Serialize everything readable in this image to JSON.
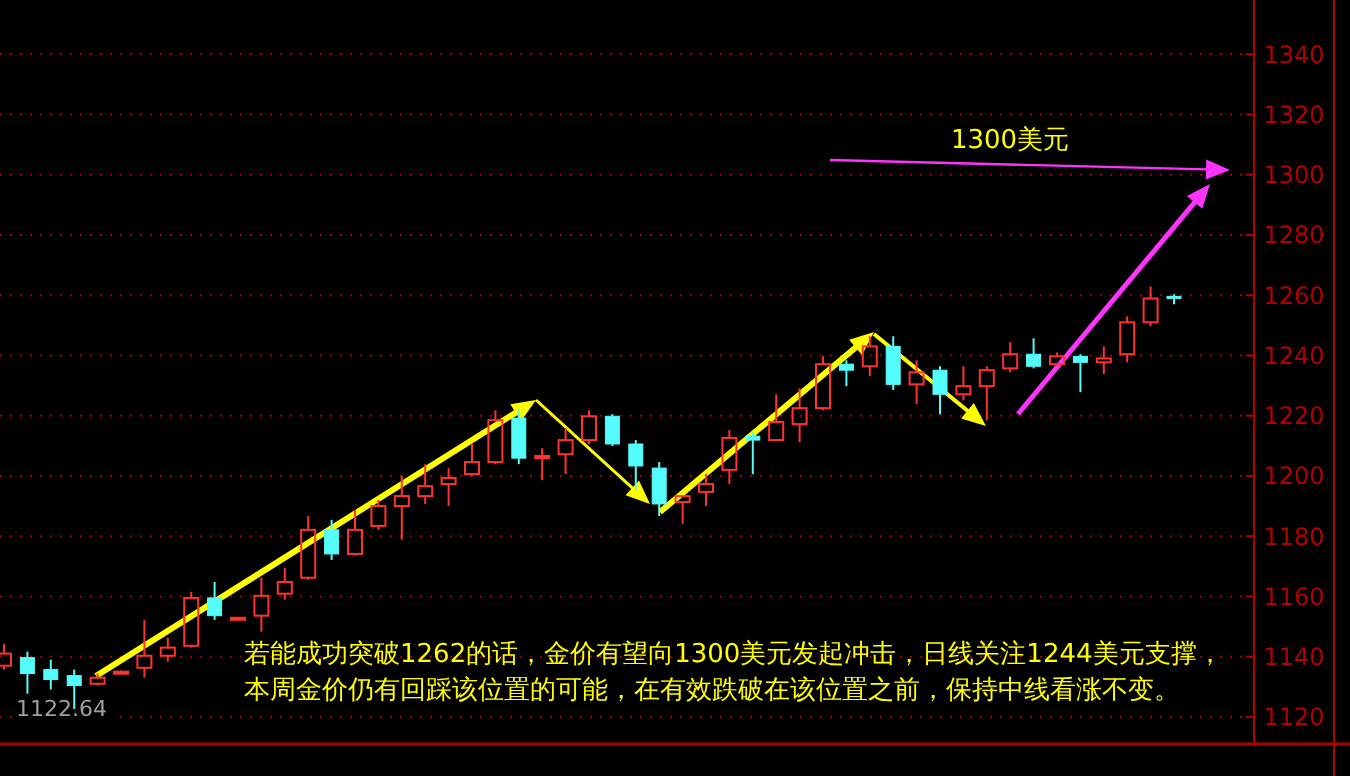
{
  "chart_data": {
    "type": "candlestick",
    "categories": [
      null,
      null,
      null,
      null,
      null,
      null,
      null,
      null,
      null,
      null,
      null,
      null,
      null,
      null,
      null,
      null,
      null,
      null,
      null,
      null,
      null,
      null,
      null,
      null,
      null,
      null,
      null,
      null,
      null,
      null,
      null,
      null,
      null,
      null,
      null,
      null,
      null,
      null,
      null,
      null,
      null,
      null,
      null,
      null,
      null,
      null,
      null,
      null,
      null,
      null,
      null
    ],
    "ohlc": [
      [
        1137.0,
        1144.3,
        1135.7,
        1141.0
      ],
      [
        1139.7,
        1141.7,
        1127.7,
        1134.4
      ],
      [
        1135.7,
        1139.0,
        1129.1,
        1132.4
      ],
      [
        1133.7,
        1135.7,
        1122.64,
        1130.4
      ],
      [
        1131.0,
        1134.4,
        1130.4,
        1133.0
      ],
      [
        1135.0,
        1135.4,
        1134.6,
        1135.0
      ],
      [
        1136.3,
        1152.2,
        1133.0,
        1140.3
      ],
      [
        1140.3,
        1146.3,
        1138.3,
        1143.0
      ],
      [
        1143.6,
        1161.5,
        1143.0,
        1159.5
      ],
      [
        1159.5,
        1164.8,
        1152.2,
        1153.6
      ],
      [
        1152.9,
        1153.2,
        1152.6,
        1152.9
      ],
      [
        1153.6,
        1166.2,
        1148.3,
        1160.2
      ],
      [
        1160.9,
        1169.5,
        1158.9,
        1164.8
      ],
      [
        1166.2,
        1186.7,
        1165.5,
        1182.1
      ],
      [
        1182.1,
        1185.4,
        1172.1,
        1174.1
      ],
      [
        1174.1,
        1188.7,
        1173.5,
        1182.1
      ],
      [
        1183.4,
        1192.0,
        1182.1,
        1190.0
      ],
      [
        1190.0,
        1200.0,
        1178.8,
        1193.3
      ],
      [
        1193.3,
        1203.9,
        1190.7,
        1196.6
      ],
      [
        1197.3,
        1202.6,
        1190.0,
        1199.3
      ],
      [
        1200.6,
        1210.6,
        1200.0,
        1204.6
      ],
      [
        1204.6,
        1221.8,
        1203.9,
        1218.5
      ],
      [
        1219.2,
        1221.8,
        1203.9,
        1205.9
      ],
      [
        1206.6,
        1209.2,
        1198.6,
        1206.6
      ],
      [
        1207.2,
        1215.9,
        1200.6,
        1211.9
      ],
      [
        1211.9,
        1221.8,
        1210.6,
        1219.8
      ],
      [
        1219.8,
        1220.5,
        1209.9,
        1210.6
      ],
      [
        1210.6,
        1211.9,
        1195.3,
        1203.3
      ],
      [
        1202.6,
        1204.6,
        1186.7,
        1190.7
      ],
      [
        1191.3,
        1193.3,
        1184.1,
        1193.3
      ],
      [
        1194.7,
        1200.6,
        1190.0,
        1197.3
      ],
      [
        1202.0,
        1215.2,
        1197.3,
        1212.6
      ],
      [
        1213.2,
        1214.5,
        1200.6,
        1211.9
      ],
      [
        1211.9,
        1227.1,
        1211.9,
        1217.9
      ],
      [
        1217.2,
        1229.1,
        1211.2,
        1222.5
      ],
      [
        1222.5,
        1239.7,
        1221.8,
        1237.1
      ],
      [
        1237.1,
        1238.4,
        1229.8,
        1235.1
      ],
      [
        1236.4,
        1246.4,
        1233.1,
        1243.0
      ],
      [
        1243.0,
        1246.4,
        1228.5,
        1230.4
      ],
      [
        1230.4,
        1238.4,
        1223.8,
        1234.4
      ],
      [
        1235.1,
        1236.4,
        1220.5,
        1227.1
      ],
      [
        1227.1,
        1236.4,
        1225.1,
        1229.8
      ],
      [
        1229.8,
        1236.4,
        1218.5,
        1235.1
      ],
      [
        1235.7,
        1244.4,
        1234.4,
        1240.4
      ],
      [
        1240.4,
        1245.7,
        1235.7,
        1236.4
      ],
      [
        1237.1,
        1241.0,
        1236.4,
        1239.7
      ],
      [
        1239.7,
        1240.4,
        1227.8,
        1237.7
      ],
      [
        1237.7,
        1243.0,
        1233.8,
        1239.0
      ],
      [
        1240.4,
        1253.0,
        1237.7,
        1251.0
      ],
      [
        1251.0,
        1262.9,
        1249.7,
        1258.9
      ],
      [
        1259.6,
        1260.3,
        1257.0,
        1259.5
      ]
    ],
    "colors": [
      "#ff3232",
      "#54fcfc",
      "#54fcfc",
      "#54fcfc",
      "#ff3232",
      "#ff3232",
      "#ff3232",
      "#ff3232",
      "#ff3232",
      "#54fcfc",
      "#ff3232",
      "#ff3232",
      "#ff3232",
      "#ff3232",
      "#54fcfc",
      "#ff3232",
      "#ff3232",
      "#ff3232",
      "#ff3232",
      "#ff3232",
      "#ff3232",
      "#ff3232",
      "#54fcfc",
      "#ff3232",
      "#ff3232",
      "#ff3232",
      "#54fcfc",
      "#54fcfc",
      "#54fcfc",
      "#ff3232",
      "#ff3232",
      "#ff3232",
      "#54fcfc",
      "#ff3232",
      "#ff3232",
      "#ff3232",
      "#54fcfc",
      "#ff3232",
      "#54fcfc",
      "#ff3232",
      "#54fcfc",
      "#ff3232",
      "#ff3232",
      "#ff3232",
      "#54fcfc",
      "#ff3232",
      "#54fcfc",
      "#ff3232",
      "#ff3232",
      "#ff3232",
      "#54fcfc"
    ],
    "ylim": [
      1111,
      1358
    ],
    "yticks": [
      1120,
      1140,
      1160,
      1180,
      1200,
      1220,
      1240,
      1260,
      1280,
      1300,
      1320,
      1340
    ],
    "grid": "y",
    "annotations": [
      "1300美元",
      "1122.64",
      "若能成功突破1262的话，金价有望向1300美元发起冲击，日线关注1244美元支撑，本周金价仍有回踩该位置的可能，在有效跌破在该位置之前，保持中线看涨不变。"
    ]
  }
}
